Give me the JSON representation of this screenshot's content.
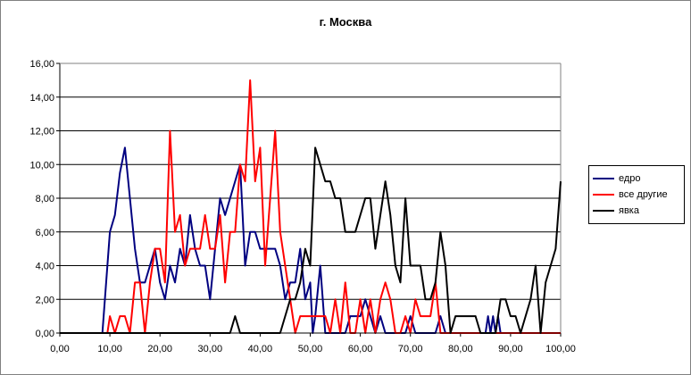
{
  "chart_data": {
    "type": "line",
    "title": "г. Москва",
    "xlim": [
      0,
      100
    ],
    "ylim": [
      0,
      16
    ],
    "xticks": [
      "0,00",
      "10,00",
      "20,00",
      "30,00",
      "40,00",
      "50,00",
      "60,00",
      "70,00",
      "80,00",
      "90,00",
      "100,00"
    ],
    "yticks": [
      "0,00",
      "2,00",
      "4,00",
      "6,00",
      "8,00",
      "10,00",
      "12,00",
      "14,00",
      "16,00"
    ],
    "grid": "horizontal",
    "legend_position": "right",
    "series": [
      {
        "name": "едро",
        "color": "#000080",
        "points": [
          [
            0,
            0
          ],
          [
            8.5,
            0
          ],
          [
            9,
            2
          ],
          [
            10,
            6
          ],
          [
            11,
            7
          ],
          [
            12,
            9.5
          ],
          [
            13,
            11
          ],
          [
            14,
            8
          ],
          [
            15,
            5
          ],
          [
            16,
            3
          ],
          [
            17,
            3
          ],
          [
            18,
            4
          ],
          [
            19,
            5
          ],
          [
            20,
            3
          ],
          [
            21,
            2
          ],
          [
            22,
            4
          ],
          [
            23,
            3
          ],
          [
            24,
            5
          ],
          [
            25,
            4
          ],
          [
            26,
            7
          ],
          [
            27,
            5
          ],
          [
            28,
            4
          ],
          [
            29,
            4
          ],
          [
            30,
            2
          ],
          [
            31,
            5
          ],
          [
            32,
            8
          ],
          [
            33,
            7
          ],
          [
            34,
            8
          ],
          [
            35,
            9
          ],
          [
            36,
            10
          ],
          [
            37,
            4
          ],
          [
            38,
            6
          ],
          [
            39,
            6
          ],
          [
            40,
            5
          ],
          [
            41,
            5
          ],
          [
            42,
            5
          ],
          [
            43,
            5
          ],
          [
            44,
            4
          ],
          [
            45,
            2
          ],
          [
            46,
            3
          ],
          [
            47,
            3
          ],
          [
            48,
            5
          ],
          [
            49,
            2
          ],
          [
            50,
            3
          ],
          [
            50.5,
            0
          ],
          [
            51,
            1
          ],
          [
            52,
            4
          ],
          [
            53,
            0
          ],
          [
            57,
            0
          ],
          [
            58,
            1
          ],
          [
            59,
            1
          ],
          [
            60,
            1
          ],
          [
            61,
            2
          ],
          [
            62,
            1
          ],
          [
            63,
            0
          ],
          [
            64,
            1
          ],
          [
            65,
            0
          ],
          [
            69,
            0
          ],
          [
            70,
            1
          ],
          [
            71,
            0
          ],
          [
            75,
            0
          ],
          [
            76,
            1
          ],
          [
            77,
            0
          ],
          [
            85,
            0
          ],
          [
            85.5,
            1
          ],
          [
            86,
            0
          ],
          [
            86.5,
            1
          ],
          [
            87,
            0
          ],
          [
            87.5,
            1
          ],
          [
            88,
            0
          ],
          [
            100,
            0
          ]
        ]
      },
      {
        "name": "все другие",
        "color": "#ff0000",
        "points": [
          [
            0,
            0
          ],
          [
            9.5,
            0
          ],
          [
            10,
            1
          ],
          [
            11,
            0
          ],
          [
            12,
            1
          ],
          [
            13,
            1
          ],
          [
            14,
            0
          ],
          [
            15,
            3
          ],
          [
            16,
            3
          ],
          [
            17,
            0
          ],
          [
            18,
            3
          ],
          [
            19,
            5
          ],
          [
            20,
            5
          ],
          [
            21,
            3
          ],
          [
            22,
            12
          ],
          [
            23,
            6
          ],
          [
            24,
            7
          ],
          [
            25,
            4
          ],
          [
            26,
            5
          ],
          [
            27,
            5
          ],
          [
            28,
            5
          ],
          [
            29,
            7
          ],
          [
            30,
            5
          ],
          [
            31,
            5
          ],
          [
            32,
            7
          ],
          [
            33,
            3
          ],
          [
            34,
            6
          ],
          [
            35,
            6
          ],
          [
            36,
            10
          ],
          [
            37,
            9
          ],
          [
            38,
            15
          ],
          [
            39,
            9
          ],
          [
            40,
            11
          ],
          [
            41,
            4
          ],
          [
            42,
            8
          ],
          [
            43,
            12
          ],
          [
            44,
            6
          ],
          [
            45,
            4
          ],
          [
            46,
            2
          ],
          [
            47,
            0
          ],
          [
            48,
            1
          ],
          [
            49,
            1
          ],
          [
            50,
            1
          ],
          [
            51,
            1
          ],
          [
            52,
            1
          ],
          [
            53,
            1
          ],
          [
            54,
            0
          ],
          [
            55,
            2
          ],
          [
            56,
            0
          ],
          [
            57,
            3
          ],
          [
            58,
            0
          ],
          [
            59,
            0
          ],
          [
            60,
            2
          ],
          [
            61,
            0
          ],
          [
            62,
            2
          ],
          [
            63,
            0
          ],
          [
            64,
            2
          ],
          [
            65,
            3
          ],
          [
            66,
            2
          ],
          [
            67,
            0
          ],
          [
            68,
            0
          ],
          [
            69,
            1
          ],
          [
            70,
            0
          ],
          [
            71,
            2
          ],
          [
            72,
            1
          ],
          [
            73,
            1
          ],
          [
            74,
            1
          ],
          [
            75,
            3
          ],
          [
            76,
            0
          ],
          [
            100,
            0
          ]
        ]
      },
      {
        "name": "явка",
        "color": "#000000",
        "points": [
          [
            0,
            0
          ],
          [
            34,
            0
          ],
          [
            35,
            1
          ],
          [
            36,
            0
          ],
          [
            44,
            0
          ],
          [
            45,
            1
          ],
          [
            46,
            2
          ],
          [
            47,
            2
          ],
          [
            48,
            3
          ],
          [
            49,
            5
          ],
          [
            50,
            4
          ],
          [
            51,
            11
          ],
          [
            52,
            10
          ],
          [
            53,
            9
          ],
          [
            54,
            9
          ],
          [
            55,
            8
          ],
          [
            56,
            8
          ],
          [
            57,
            6
          ],
          [
            58,
            6
          ],
          [
            59,
            6
          ],
          [
            60,
            7
          ],
          [
            61,
            8
          ],
          [
            62,
            8
          ],
          [
            63,
            5
          ],
          [
            64,
            7
          ],
          [
            65,
            9
          ],
          [
            66,
            7
          ],
          [
            67,
            4
          ],
          [
            68,
            3
          ],
          [
            69,
            8
          ],
          [
            70,
            4
          ],
          [
            71,
            4
          ],
          [
            72,
            4
          ],
          [
            73,
            2
          ],
          [
            74,
            2
          ],
          [
            75,
            3
          ],
          [
            76,
            6
          ],
          [
            77,
            4
          ],
          [
            78,
            0
          ],
          [
            79,
            1
          ],
          [
            80,
            1
          ],
          [
            81,
            1
          ],
          [
            82,
            1
          ],
          [
            83,
            1
          ],
          [
            84,
            0
          ],
          [
            87,
            0
          ],
          [
            88,
            2
          ],
          [
            89,
            2
          ],
          [
            90,
            1
          ],
          [
            91,
            1
          ],
          [
            92,
            0
          ],
          [
            93,
            1
          ],
          [
            94,
            2
          ],
          [
            95,
            4
          ],
          [
            96,
            0
          ],
          [
            97,
            3
          ],
          [
            98,
            4
          ],
          [
            99,
            5
          ],
          [
            100,
            9
          ]
        ]
      }
    ]
  }
}
